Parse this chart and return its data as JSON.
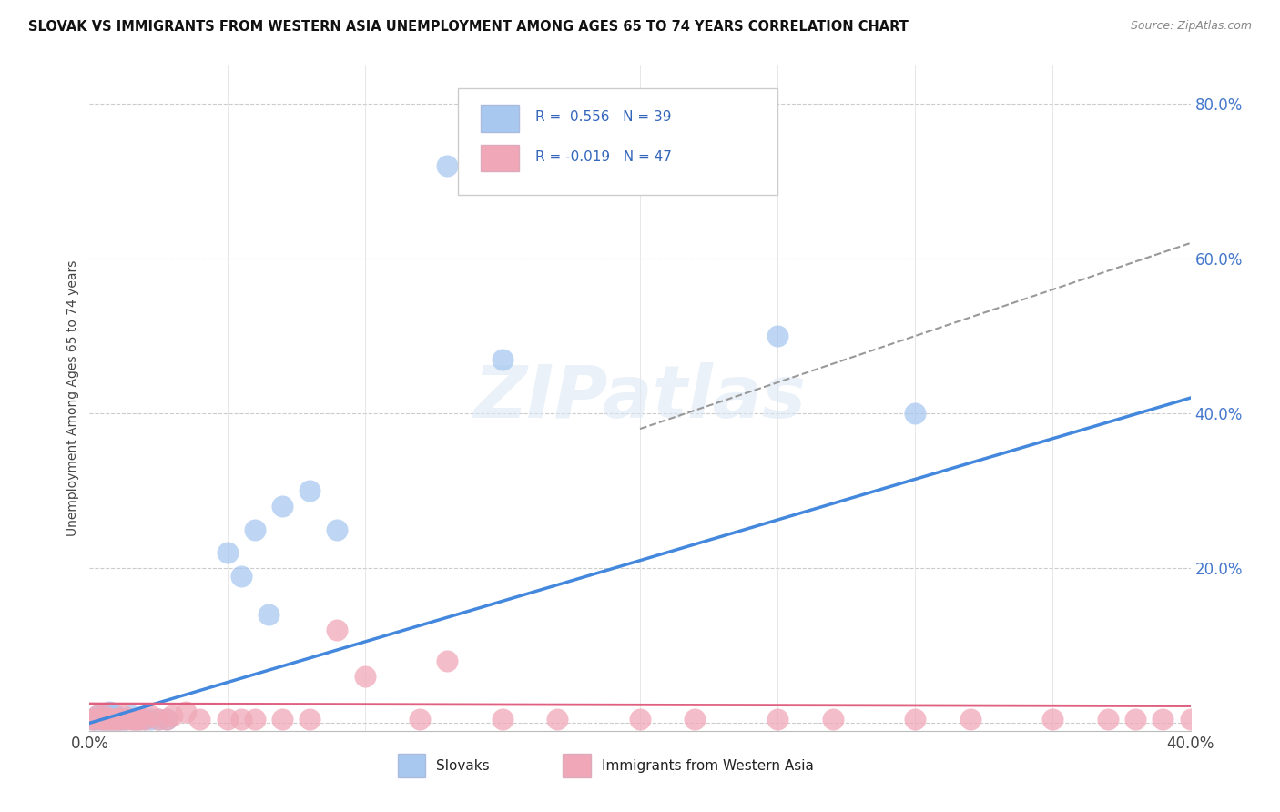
{
  "title": "SLOVAK VS IMMIGRANTS FROM WESTERN ASIA UNEMPLOYMENT AMONG AGES 65 TO 74 YEARS CORRELATION CHART",
  "source": "Source: ZipAtlas.com",
  "ylabel": "Unemployment Among Ages 65 to 74 years",
  "xlim": [
    0.0,
    0.4
  ],
  "ylim": [
    -0.01,
    0.85
  ],
  "xticks": [
    0.0,
    0.05,
    0.1,
    0.15,
    0.2,
    0.25,
    0.3,
    0.35,
    0.4
  ],
  "xticklabels": [
    "0.0%",
    "",
    "",
    "",
    "",
    "",
    "",
    "",
    "40.0%"
  ],
  "yticks": [
    0.0,
    0.2,
    0.4,
    0.6,
    0.8
  ],
  "yticklabels": [
    "",
    "20.0%",
    "40.0%",
    "60.0%",
    "80.0%"
  ],
  "legend_r_slovak": "0.556",
  "legend_n_slovak": "39",
  "legend_r_immigrant": "-0.019",
  "legend_n_immigrant": "47",
  "slovak_color": "#a8c8f0",
  "immigrant_color": "#f0a8b8",
  "slovak_line_color": "#4488dd",
  "immigrant_line_color": "#e06080",
  "dashed_line_color": "#999999",
  "background_color": "#ffffff",
  "watermark": "ZIPatlas",
  "slovak_x": [
    0.001,
    0.002,
    0.003,
    0.003,
    0.004,
    0.004,
    0.005,
    0.005,
    0.006,
    0.006,
    0.007,
    0.007,
    0.008,
    0.008,
    0.009,
    0.009,
    0.01,
    0.01,
    0.011,
    0.012,
    0.013,
    0.015,
    0.016,
    0.018,
    0.02,
    0.022,
    0.025,
    0.028,
    0.05,
    0.055,
    0.06,
    0.065,
    0.07,
    0.08,
    0.09,
    0.13,
    0.15,
    0.25,
    0.3
  ],
  "slovak_y": [
    0.005,
    0.005,
    0.005,
    0.01,
    0.005,
    0.01,
    0.005,
    0.01,
    0.005,
    0.01,
    0.005,
    0.015,
    0.005,
    0.01,
    0.005,
    0.01,
    0.005,
    0.008,
    0.005,
    0.005,
    0.005,
    0.01,
    0.005,
    0.005,
    0.005,
    0.005,
    0.005,
    0.005,
    0.22,
    0.19,
    0.25,
    0.14,
    0.28,
    0.3,
    0.25,
    0.72,
    0.47,
    0.5,
    0.4
  ],
  "immigrant_x": [
    0.001,
    0.002,
    0.003,
    0.004,
    0.005,
    0.005,
    0.006,
    0.007,
    0.008,
    0.009,
    0.01,
    0.011,
    0.012,
    0.013,
    0.015,
    0.016,
    0.017,
    0.018,
    0.02,
    0.022,
    0.025,
    0.028,
    0.03,
    0.035,
    0.04,
    0.05,
    0.055,
    0.06,
    0.07,
    0.08,
    0.09,
    0.1,
    0.12,
    0.13,
    0.15,
    0.17,
    0.2,
    0.22,
    0.25,
    0.27,
    0.3,
    0.32,
    0.35,
    0.37,
    0.38,
    0.39,
    0.4
  ],
  "immigrant_y": [
    0.005,
    0.005,
    0.01,
    0.005,
    0.005,
    0.01,
    0.005,
    0.005,
    0.005,
    0.005,
    0.005,
    0.005,
    0.01,
    0.005,
    0.005,
    0.005,
    0.005,
    0.005,
    0.005,
    0.01,
    0.005,
    0.005,
    0.01,
    0.015,
    0.005,
    0.005,
    0.005,
    0.005,
    0.005,
    0.005,
    0.12,
    0.06,
    0.005,
    0.08,
    0.005,
    0.005,
    0.005,
    0.005,
    0.005,
    0.005,
    0.005,
    0.005,
    0.005,
    0.005,
    0.005,
    0.005,
    0.005
  ],
  "blue_line_x0": 0.0,
  "blue_line_y0": 0.0,
  "blue_line_x1": 0.4,
  "blue_line_y1": 0.42,
  "pink_line_x0": 0.0,
  "pink_line_y0": 0.025,
  "pink_line_x1": 0.4,
  "pink_line_y1": 0.022,
  "dash_line_x0": 0.2,
  "dash_line_y0": 0.38,
  "dash_line_x1": 0.4,
  "dash_line_y1": 0.62
}
